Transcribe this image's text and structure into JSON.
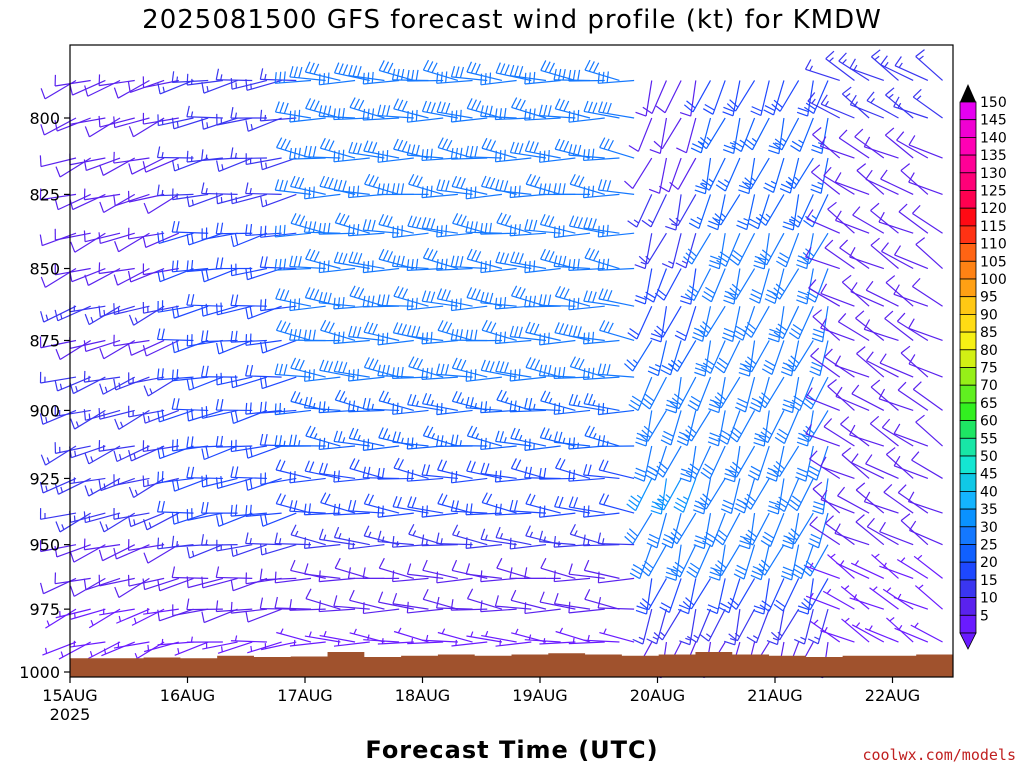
{
  "chart_data": {
    "type": "wind_barb_profile",
    "title": "2025081500 GFS forecast wind profile (kt) for KMDW",
    "xlabel": "Forecast Time (UTC)",
    "ylabel": "",
    "credit": "coolwx.com/models",
    "x_ticks": [
      "15AUG",
      "16AUG",
      "17AUG",
      "18AUG",
      "19AUG",
      "20AUG",
      "21AUG",
      "22AUG"
    ],
    "x_year_label": "2025",
    "x_range_days": [
      0,
      7.5
    ],
    "y_ticks": [
      "800",
      "825",
      "850",
      "875",
      "900",
      "925",
      "950",
      "975",
      "1000"
    ],
    "y_range_hpa": [
      775,
      1000
    ],
    "y_axis_reversed": true,
    "pressure_levels": [
      775,
      788,
      800,
      813,
      825,
      838,
      850,
      863,
      875,
      888,
      900,
      913,
      925,
      938,
      950,
      963,
      975,
      988
    ],
    "colorbar": {
      "levels": [
        "5",
        "10",
        "15",
        "20",
        "25",
        "30",
        "35",
        "40",
        "45",
        "50",
        "55",
        "60",
        "65",
        "70",
        "75",
        "80",
        "85",
        "90",
        "95",
        "100",
        "105",
        "110",
        "115",
        "120",
        "125",
        "130",
        "135",
        "140",
        "145",
        "150"
      ],
      "colors": [
        "#6a1bff",
        "#5a22ee",
        "#3a36f0",
        "#1e48ff",
        "#1060ff",
        "#1478ff",
        "#0a92ff",
        "#14b4ff",
        "#10c8e6",
        "#14e6d2",
        "#18e6a6",
        "#1ee664",
        "#32f020",
        "#60f020",
        "#96f018",
        "#d2f014",
        "#f6f014",
        "#ffdc14",
        "#ffc814",
        "#ffa014",
        "#ff8214",
        "#ff6414",
        "#ff3214",
        "#ff0a14",
        "#ff0050",
        "#ff0078",
        "#ff0096",
        "#ff00b4",
        "#f000d2",
        "#e600f0"
      ]
    },
    "terrain_color": "#a0522d",
    "series": [
      {
        "t_start_day": 0.0,
        "t_end_day": 1.0,
        "dir_deg": 250,
        "speed_kt": [
          10,
          10,
          12,
          12,
          12,
          14,
          14,
          15,
          14,
          15,
          15,
          16,
          18,
          16,
          14,
          10,
          8,
          6
        ]
      },
      {
        "t_start_day": 1.0,
        "t_end_day": 2.0,
        "dir_deg": 260,
        "speed_kt": [
          15,
          15,
          18,
          18,
          18,
          20,
          20,
          20,
          20,
          20,
          22,
          22,
          24,
          20,
          18,
          14,
          10,
          8
        ]
      },
      {
        "t_start_day": 2.0,
        "t_end_day": 4.9,
        "dir_deg": 275,
        "speed_kt": [
          30,
          32,
          32,
          34,
          34,
          34,
          34,
          33,
          32,
          30,
          28,
          26,
          24,
          20,
          18,
          14,
          10,
          8
        ]
      },
      {
        "t_start_day": 4.9,
        "t_end_day": 5.4,
        "dir_deg": 200,
        "speed_kt": [
          12,
          12,
          14,
          14,
          16,
          18,
          20,
          24,
          28,
          30,
          32,
          34,
          36,
          34,
          30,
          24,
          18,
          12
        ]
      },
      {
        "t_start_day": 5.4,
        "t_end_day": 6.5,
        "dir_deg": 200,
        "speed_kt": [
          24,
          24,
          26,
          26,
          28,
          30,
          30,
          32,
          32,
          34,
          34,
          34,
          34,
          32,
          30,
          24,
          18,
          12
        ]
      },
      {
        "t_start_day": 6.5,
        "t_end_day": 7.5,
        "dir_deg": 300,
        "speed_kt": [
          15,
          15,
          15,
          14,
          14,
          12,
          12,
          12,
          10,
          10,
          10,
          10,
          10,
          10,
          10,
          8,
          8,
          6
        ]
      }
    ],
    "surface_pressure_hpa": [
      994.5,
      994.5,
      994.2,
      994.5,
      993.5,
      994.0,
      993.8,
      992.0,
      994.0,
      993.5,
      993.0,
      993.5,
      993.0,
      992.5,
      993.0,
      993.5,
      993.0,
      992.0,
      993.0,
      993.5,
      994.0,
      993.5,
      993.5,
      993.0
    ]
  }
}
